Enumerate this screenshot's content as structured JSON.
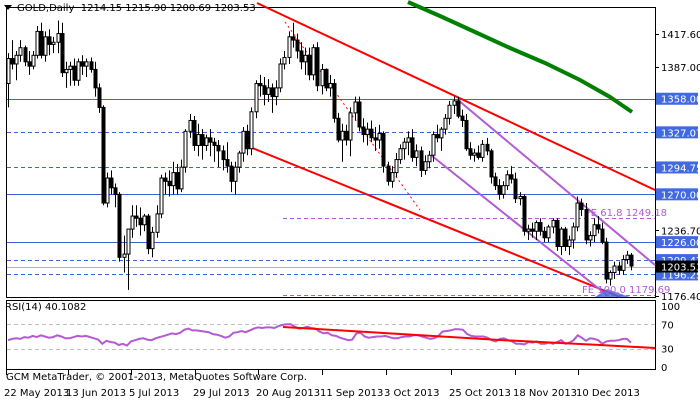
{
  "header": {
    "symbol_timeframe": "GOLD,Daily",
    "ohlc": "1214.15 1215.90 1200.69 1203.53"
  },
  "rsi_panel": {
    "label": "RSI(14) 40.1082",
    "axis_labels": [
      "100",
      "70",
      "30",
      "0"
    ]
  },
  "footer": {
    "copyright": "GCM MetaTrader, © 2001-2013, MetaQuotes Software Corp."
  },
  "colors": {
    "hline": "#3c64d6",
    "label_bg": "#4169e1",
    "channel_red": "#ff0000",
    "ma_green": "#008000",
    "fibo_violet": "#b45ad2",
    "rsi_line": "#b45ad2",
    "current_price_bg": "#000000"
  },
  "chart_data": [
    {
      "type": "candlestick",
      "title": "GOLD,Daily",
      "subtitle": "O 1214.15 H 1215.90 L 1200.69 C 1203.53",
      "xlabel": "",
      "ylabel": "",
      "ylim": [
        1170,
        1445
      ],
      "grid": false,
      "x_tick_labels": [
        "22 May 2013",
        "13 Jun 2013",
        "5 Jul 2013",
        "29 Jul 2013",
        "20 Aug 2013",
        "11 Sep 2013",
        "3 Oct 2013",
        "25 Oct 2013",
        "18 Nov 2013",
        "10 Dec 2013"
      ],
      "y_tick_labels": [
        "1417.60",
        "1387.00",
        "1358.00",
        "1327.07",
        "1294.75",
        "1270.00",
        "1236.70",
        "1226.00",
        "1209.47",
        "1203.53",
        "1196.25",
        "1176.40"
      ],
      "horizontal_levels": [
        {
          "price": 1358.0,
          "style": "solid",
          "label": "1358.00"
        },
        {
          "price": 1327.07,
          "style": "dashed",
          "label": "1327.07"
        },
        {
          "price": 1294.75,
          "style": "dashed",
          "label": "1294.75"
        },
        {
          "price": 1270.0,
          "style": "solid",
          "label": "1270.00"
        },
        {
          "price": 1226.0,
          "style": "solid",
          "label": "1226.00"
        },
        {
          "price": 1209.47,
          "style": "dashed",
          "label": "1209.47"
        },
        {
          "price": 1196.25,
          "style": "dashed",
          "label": "1196.25"
        }
      ],
      "current_price": 1203.53,
      "fibo_expansion": [
        {
          "label": "FE 61.8 1249.18",
          "price": 1249.18
        },
        {
          "label": "FE 100.0 1179.69",
          "price": 1179.69
        }
      ],
      "annotations": [
        "Descending red channel",
        "Green moving average (declining)",
        "Violet descending channel",
        "Red dotted trend line"
      ],
      "candles": [
        [
          1372,
          1400,
          1350,
          1395
        ],
        [
          1395,
          1412,
          1385,
          1390
        ],
        [
          1390,
          1402,
          1375,
          1398
        ],
        [
          1398,
          1412,
          1392,
          1405
        ],
        [
          1405,
          1407,
          1388,
          1392
        ],
        [
          1392,
          1402,
          1380,
          1388
        ],
        [
          1388,
          1402,
          1385,
          1398
        ],
        [
          1398,
          1425,
          1395,
          1420
        ],
        [
          1420,
          1428,
          1395,
          1398
        ],
        [
          1398,
          1420,
          1392,
          1415
        ],
        [
          1415,
          1422,
          1398,
          1408
        ],
        [
          1408,
          1415,
          1400,
          1410
        ],
        [
          1410,
          1430,
          1400,
          1418
        ],
        [
          1418,
          1428,
          1378,
          1382
        ],
        [
          1382,
          1392,
          1368,
          1385
        ],
        [
          1385,
          1392,
          1370,
          1388
        ],
        [
          1388,
          1395,
          1370,
          1375
        ],
        [
          1375,
          1395,
          1370,
          1392
        ],
        [
          1392,
          1398,
          1380,
          1388
        ],
        [
          1388,
          1395,
          1378,
          1392
        ],
        [
          1392,
          1396,
          1382,
          1385
        ],
        [
          1385,
          1392,
          1360,
          1368
        ],
        [
          1368,
          1372,
          1345,
          1350
        ],
        [
          1350,
          1352,
          1260,
          1262
        ],
        [
          1262,
          1290,
          1258,
          1285
        ],
        [
          1285,
          1292,
          1270,
          1276
        ],
        [
          1276,
          1280,
          1258,
          1270
        ],
        [
          1270,
          1272,
          1208,
          1212
        ],
        [
          1212,
          1232,
          1198,
          1215
        ],
        [
          1215,
          1230,
          1182,
          1238
        ],
        [
          1238,
          1260,
          1230,
          1250
        ],
        [
          1250,
          1260,
          1240,
          1248
        ],
        [
          1248,
          1258,
          1232,
          1242
        ],
        [
          1242,
          1252,
          1236,
          1250
        ],
        [
          1250,
          1252,
          1215,
          1220
        ],
        [
          1220,
          1240,
          1212,
          1235
        ],
        [
          1235,
          1260,
          1230,
          1252
        ],
        [
          1252,
          1288,
          1248,
          1285
        ],
        [
          1285,
          1290,
          1270,
          1282
        ],
        [
          1282,
          1292,
          1268,
          1278
        ],
        [
          1278,
          1300,
          1270,
          1290
        ],
        [
          1290,
          1298,
          1270,
          1275
        ],
        [
          1275,
          1302,
          1272,
          1295
        ],
        [
          1295,
          1330,
          1290,
          1328
        ],
        [
          1328,
          1344,
          1322,
          1338
        ],
        [
          1338,
          1342,
          1310,
          1315
        ],
        [
          1315,
          1335,
          1305,
          1325
        ],
        [
          1325,
          1330,
          1302,
          1315
        ],
        [
          1315,
          1325,
          1310,
          1322
        ],
        [
          1322,
          1330,
          1305,
          1318
        ],
        [
          1318,
          1322,
          1300,
          1315
        ],
        [
          1315,
          1320,
          1295,
          1310
        ],
        [
          1310,
          1315,
          1292,
          1302
        ],
        [
          1302,
          1318,
          1290,
          1296
        ],
        [
          1296,
          1300,
          1272,
          1282
        ],
        [
          1282,
          1300,
          1270,
          1295
        ],
        [
          1295,
          1310,
          1290,
          1308
        ],
        [
          1308,
          1332,
          1300,
          1328
        ],
        [
          1328,
          1334,
          1306,
          1312
        ],
        [
          1312,
          1350,
          1306,
          1346
        ],
        [
          1346,
          1375,
          1340,
          1372
        ],
        [
          1372,
          1380,
          1360,
          1370
        ],
        [
          1370,
          1378,
          1352,
          1362
        ],
        [
          1362,
          1376,
          1355,
          1368
        ],
        [
          1368,
          1372,
          1345,
          1360
        ],
        [
          1360,
          1375,
          1352,
          1368
        ],
        [
          1368,
          1395,
          1364,
          1390
        ],
        [
          1390,
          1402,
          1385,
          1396
        ],
        [
          1396,
          1420,
          1390,
          1415
        ],
        [
          1415,
          1428,
          1405,
          1412
        ],
        [
          1412,
          1418,
          1395,
          1402
        ],
        [
          1402,
          1410,
          1385,
          1392
        ],
        [
          1392,
          1405,
          1380,
          1398
        ],
        [
          1398,
          1405,
          1375,
          1380
        ],
        [
          1380,
          1408,
          1375,
          1405
        ],
        [
          1405,
          1410,
          1365,
          1370
        ],
        [
          1370,
          1390,
          1362,
          1385
        ],
        [
          1385,
          1386,
          1365,
          1368
        ],
        [
          1368,
          1380,
          1360,
          1372
        ],
        [
          1372,
          1376,
          1336,
          1340
        ],
        [
          1340,
          1345,
          1318,
          1320
        ],
        [
          1320,
          1335,
          1300,
          1328
        ],
        [
          1328,
          1334,
          1315,
          1320
        ],
        [
          1320,
          1350,
          1305,
          1345
        ],
        [
          1345,
          1360,
          1338,
          1355
        ],
        [
          1355,
          1360,
          1328,
          1332
        ],
        [
          1332,
          1340,
          1318,
          1325
        ],
        [
          1325,
          1336,
          1315,
          1330
        ],
        [
          1330,
          1338,
          1318,
          1322
        ],
        [
          1322,
          1332,
          1310,
          1320
        ],
        [
          1320,
          1334,
          1312,
          1326
        ],
        [
          1326,
          1328,
          1290,
          1296
        ],
        [
          1296,
          1300,
          1278,
          1282
        ],
        [
          1282,
          1296,
          1276,
          1290
        ],
        [
          1290,
          1308,
          1286,
          1302
        ],
        [
          1302,
          1316,
          1298,
          1312
        ],
        [
          1312,
          1322,
          1302,
          1318
        ],
        [
          1318,
          1328,
          1306,
          1322
        ],
        [
          1322,
          1330,
          1300,
          1304
        ],
        [
          1304,
          1316,
          1296,
          1310
        ],
        [
          1310,
          1314,
          1286,
          1292
        ],
        [
          1292,
          1306,
          1288,
          1300
        ],
        [
          1300,
          1310,
          1294,
          1306
        ],
        [
          1306,
          1328,
          1300,
          1325
        ],
        [
          1325,
          1334,
          1318,
          1322
        ],
        [
          1322,
          1332,
          1310,
          1330
        ],
        [
          1330,
          1344,
          1325,
          1340
        ],
        [
          1340,
          1356,
          1334,
          1352
        ],
        [
          1352,
          1360,
          1344,
          1356
        ],
        [
          1356,
          1360,
          1340,
          1342
        ],
        [
          1342,
          1348,
          1332,
          1338
        ],
        [
          1338,
          1344,
          1310,
          1312
        ],
        [
          1312,
          1318,
          1302,
          1306
        ],
        [
          1306,
          1312,
          1300,
          1308
        ],
        [
          1308,
          1315,
          1302,
          1304
        ],
        [
          1304,
          1320,
          1300,
          1316
        ],
        [
          1316,
          1322,
          1306,
          1310
        ],
        [
          1310,
          1312,
          1280,
          1286
        ],
        [
          1286,
          1290,
          1274,
          1278
        ],
        [
          1278,
          1284,
          1265,
          1270
        ],
        [
          1270,
          1282,
          1266,
          1278
        ],
        [
          1278,
          1292,
          1274,
          1288
        ],
        [
          1288,
          1296,
          1280,
          1284
        ],
        [
          1284,
          1290,
          1262,
          1266
        ],
        [
          1266,
          1272,
          1260,
          1268
        ],
        [
          1268,
          1270,
          1232,
          1236
        ],
        [
          1236,
          1242,
          1228,
          1238
        ],
        [
          1238,
          1244,
          1230,
          1236
        ],
        [
          1236,
          1246,
          1228,
          1244
        ],
        [
          1244,
          1248,
          1232,
          1236
        ],
        [
          1236,
          1240,
          1226,
          1230
        ],
        [
          1230,
          1242,
          1226,
          1240
        ],
        [
          1240,
          1248,
          1234,
          1246
        ],
        [
          1246,
          1248,
          1218,
          1222
        ],
        [
          1222,
          1240,
          1214,
          1238
        ],
        [
          1238,
          1240,
          1218,
          1222
        ],
        [
          1222,
          1232,
          1214,
          1228
        ],
        [
          1228,
          1244,
          1220,
          1240
        ],
        [
          1240,
          1268,
          1236,
          1262
        ],
        [
          1262,
          1266,
          1250,
          1256
        ],
        [
          1256,
          1262,
          1224,
          1228
        ],
        [
          1228,
          1236,
          1222,
          1232
        ],
        [
          1232,
          1248,
          1226,
          1242
        ],
        [
          1242,
          1250,
          1234,
          1238
        ],
        [
          1238,
          1244,
          1224,
          1226
        ],
        [
          1226,
          1230,
          1188,
          1192
        ],
        [
          1192,
          1200,
          1186,
          1198
        ],
        [
          1198,
          1208,
          1192,
          1204
        ],
        [
          1204,
          1208,
          1196,
          1200
        ],
        [
          1200,
          1214,
          1196,
          1210
        ],
        [
          1210,
          1218,
          1206,
          1214
        ],
        [
          1214,
          1216,
          1200,
          1204
        ]
      ]
    },
    {
      "type": "line",
      "title": "RSI(14) 40.1082",
      "ylim": [
        0,
        100
      ],
      "y_tick_labels": [
        "100",
        "70",
        "30",
        "0"
      ],
      "levels": [
        70,
        30
      ],
      "series": [
        {
          "name": "RSI(14)",
          "values": [
            44,
            46,
            47,
            46,
            49,
            48,
            51,
            49,
            52,
            50,
            48,
            49,
            52,
            50,
            47,
            47,
            49,
            51,
            50,
            51,
            49,
            47,
            45,
            38,
            43,
            41,
            40,
            36,
            38,
            35,
            42,
            44,
            46,
            47,
            45,
            44,
            47,
            49,
            51,
            53,
            55,
            54,
            56,
            61,
            63,
            60,
            60,
            59,
            58,
            57,
            54,
            53,
            51,
            48,
            50,
            56,
            57,
            59,
            57,
            60,
            63,
            65,
            64,
            65,
            65,
            64,
            67,
            69,
            70,
            70,
            66,
            63,
            64,
            66,
            64,
            63,
            58,
            55,
            56,
            52,
            51,
            48,
            46,
            44,
            45,
            55,
            56,
            50,
            48,
            49,
            50,
            50,
            51,
            49,
            47,
            47,
            49,
            50,
            50,
            52,
            52,
            50,
            48,
            46,
            47,
            51,
            58,
            59,
            60,
            62,
            62,
            61,
            54,
            51,
            50,
            50,
            50,
            48,
            44,
            42,
            46,
            47,
            44,
            42,
            38,
            38,
            37,
            41,
            40,
            42,
            38,
            38,
            40,
            38,
            41,
            44,
            38,
            40,
            44,
            52,
            48,
            43,
            47,
            46,
            44,
            38,
            42,
            43,
            43,
            44,
            46,
            46,
            40
          ]
        },
        {
          "name": "Trend line",
          "values_description": "declining from ~70 at 20 Aug 2013 to ~47 at right edge"
        }
      ]
    }
  ]
}
